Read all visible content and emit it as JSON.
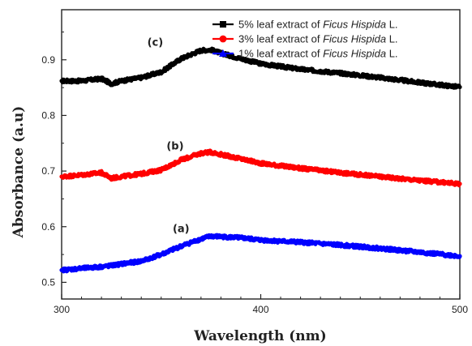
{
  "chart_data": {
    "type": "line",
    "xlabel": "Wavelength (nm)",
    "ylabel": "Absorbance (a.u)",
    "xlim": [
      300,
      500
    ],
    "ylim": [
      0.47,
      0.99
    ],
    "x_ticks": [
      "300",
      "400",
      "500"
    ],
    "y_ticks": [
      "0.5",
      "0.6",
      "0.7",
      "0.8",
      "0.9"
    ],
    "grid": false,
    "legend_position": "top-right",
    "x": [
      300,
      310,
      320,
      325,
      330,
      340,
      350,
      360,
      370,
      375,
      380,
      390,
      400,
      420,
      440,
      460,
      480,
      500
    ],
    "series": [
      {
        "name": "5% leaf extract of Ficus Hispida L.",
        "legend_prefix": "5% leaf extract of ",
        "legend_species": "Ficus Hispida",
        "legend_suffix": " L.",
        "color": "#000000",
        "marker": "square",
        "label": "(c)",
        "values": [
          0.862,
          0.862,
          0.866,
          0.857,
          0.862,
          0.868,
          0.878,
          0.902,
          0.917,
          0.918,
          0.912,
          0.902,
          0.893,
          0.883,
          0.876,
          0.868,
          0.859,
          0.851
        ]
      },
      {
        "name": "3% leaf extract of Ficus Hispida L.",
        "legend_prefix": "3% leaf extract of ",
        "legend_species": "Ficus Hispida",
        "legend_suffix": " L.",
        "color": "#ff0000",
        "marker": "circle",
        "label": "(b)",
        "values": [
          0.69,
          0.693,
          0.697,
          0.687,
          0.69,
          0.695,
          0.702,
          0.72,
          0.732,
          0.734,
          0.73,
          0.722,
          0.714,
          0.705,
          0.697,
          0.69,
          0.683,
          0.677
        ]
      },
      {
        "name": "1% leaf extract of Ficus Hispida L.",
        "legend_prefix": "1% leaf extract of ",
        "legend_species": "Ficus Hispida",
        "legend_suffix": " L.",
        "color": "#0000ff",
        "marker": "triangle",
        "label": "(a)",
        "values": [
          0.522,
          0.525,
          0.528,
          0.53,
          0.533,
          0.538,
          0.55,
          0.565,
          0.578,
          0.583,
          0.582,
          0.58,
          0.576,
          0.572,
          0.567,
          0.561,
          0.554,
          0.547
        ]
      }
    ],
    "curve_labels": [
      {
        "text": "(c)",
        "x": 347,
        "y": 0.925
      },
      {
        "text": "(b)",
        "x": 357,
        "y": 0.739
      },
      {
        "text": "(a)",
        "x": 360,
        "y": 0.59
      }
    ]
  }
}
